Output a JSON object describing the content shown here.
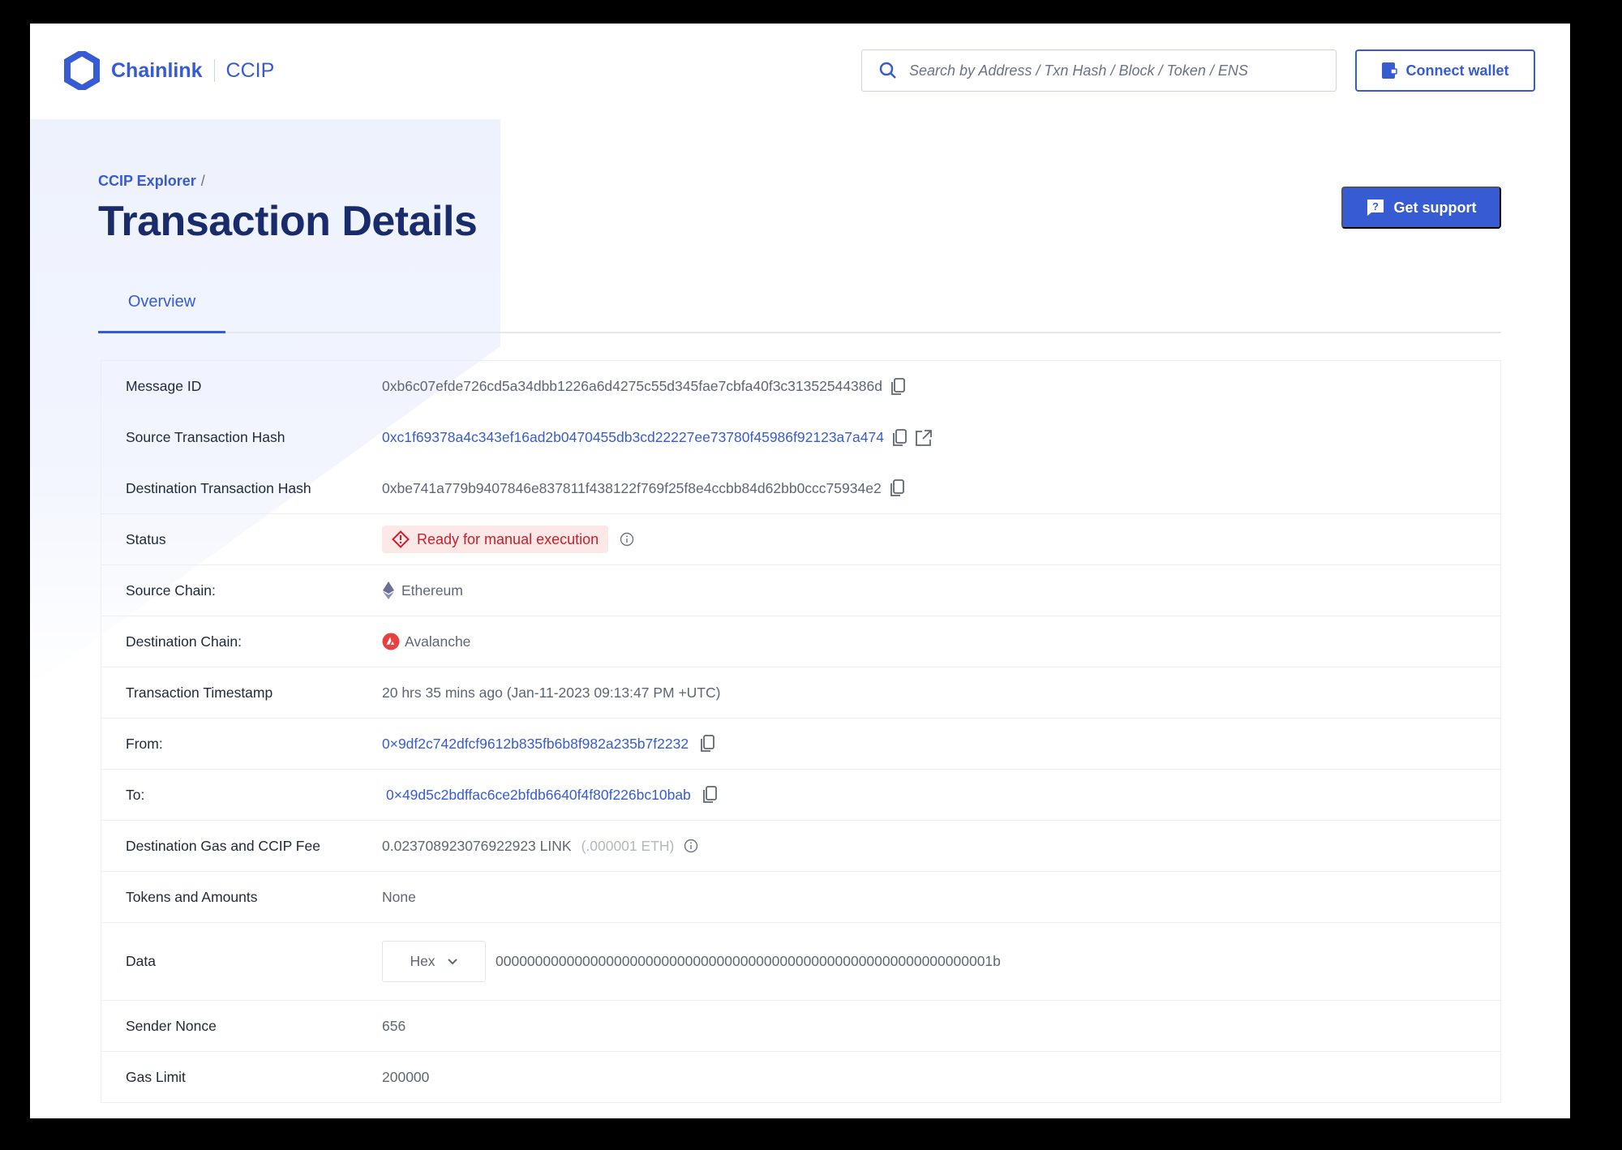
{
  "header": {
    "brand": "Chainlink",
    "product": "CCIP",
    "search_placeholder": "Search by Address / Txn Hash / Block / Token / ENS",
    "connect_wallet": "Connect wallet"
  },
  "page": {
    "breadcrumb": "CCIP Explorer",
    "breadcrumb_sep": "/",
    "title": "Transaction Details",
    "support": "Get support",
    "tabs": [
      {
        "label": "Overview",
        "active": true
      }
    ]
  },
  "details": {
    "message_id": {
      "label": "Message ID",
      "value": "0xb6c07efde726cd5a34dbb1226a6d4275c55d345fae7cbfa40f3c31352544386d"
    },
    "source_tx": {
      "label": "Source Transaction Hash",
      "value": "0xc1f69378a4c343ef16ad2b0470455db3cd22227ee73780f45986f92123a7a474"
    },
    "dest_tx": {
      "label": "Destination Transaction Hash",
      "value": "0xbe741a779b9407846e837811f438122f769f25f8e4ccbb84d62bb0ccc75934e2"
    },
    "status": {
      "label": "Status",
      "value": "Ready for manual execution",
      "color": "#c8202a"
    },
    "source_chain": {
      "label": "Source Chain:",
      "value": "Ethereum",
      "icon": "ethereum-icon"
    },
    "dest_chain": {
      "label": "Destination Chain:",
      "value": "Avalanche",
      "icon": "avalanche-icon"
    },
    "timestamp": {
      "label": "Transaction Timestamp",
      "value": "20 hrs 35 mins ago (Jan-11-2023 09:13:47 PM +UTC)"
    },
    "from": {
      "label": "From:",
      "value": "0×9df2c742dfcf9612b835fb6b8f982a235b7f2232"
    },
    "to": {
      "label": "To:",
      "value": "0×49d5c2bdffac6ce2bfdb6640f4f80f226bc10bab"
    },
    "fee": {
      "label": "Destination Gas and CCIP Fee",
      "value": "0.023708923076922923 LINK",
      "secondary": "(.000001 ETH)"
    },
    "tokens": {
      "label": "Tokens and Amounts",
      "value": "None"
    },
    "data": {
      "label": "Data",
      "format": "Hex",
      "value": "000000000000000000000000000000000000000000000000000000000000001b"
    },
    "nonce": {
      "label": "Sender Nonce",
      "value": "656"
    },
    "gas_limit": {
      "label": "Gas Limit",
      "value": "200000"
    }
  },
  "colors": {
    "accent": "#375bd2",
    "title": "#1a2b6b",
    "error": "#c8202a"
  }
}
